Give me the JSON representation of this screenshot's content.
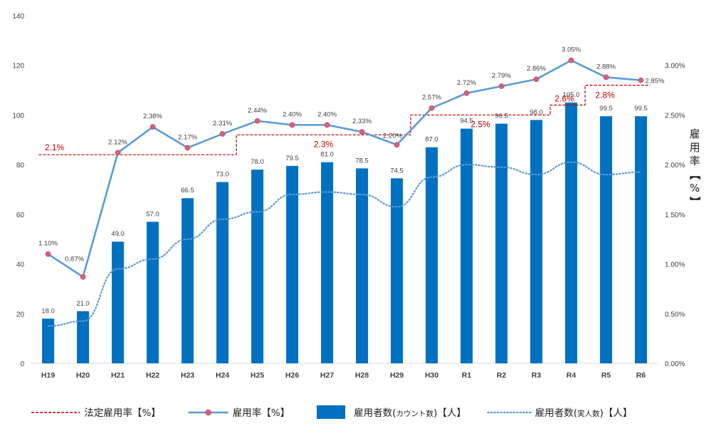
{
  "chart_data": {
    "type": "bar",
    "categories": [
      "H19",
      "H20",
      "H21",
      "H22",
      "H23",
      "H24",
      "H25",
      "H26",
      "H27",
      "H28",
      "H29",
      "H30",
      "R1",
      "R2",
      "R3",
      "R4",
      "R5",
      "R6"
    ],
    "left_axis": {
      "min": 0,
      "max": 140,
      "ticks": [
        "0",
        "20",
        "40",
        "60",
        "80",
        "100",
        "120",
        "140"
      ]
    },
    "right_axis": {
      "label": "雇用率【%】",
      "min": 0,
      "max": 3.5,
      "ticks": [
        "0.00%",
        "0.50%",
        "1.00%",
        "1.50%",
        "2.00%",
        "2.50%",
        "3.00%"
      ]
    },
    "series": [
      {
        "name": "雇用者数(カウント数)【人】",
        "axis": "left",
        "render": "bar",
        "color": "#0070c0",
        "values": [
          18.0,
          21.0,
          49.0,
          57.0,
          66.5,
          73.0,
          78.0,
          79.5,
          81.0,
          78.5,
          74.5,
          87.0,
          94.5,
          96.5,
          98.0,
          105.0,
          99.5,
          99.5
        ],
        "labels": [
          "18.0",
          "21.0",
          "49.0",
          "57.0",
          "66.5",
          "73.0",
          "78.0",
          "79.5",
          "81.0",
          "78.5",
          "74.5",
          "87.0",
          "94.5",
          "96.5",
          "98.0",
          "105.0",
          "99.5",
          "99.5"
        ]
      },
      {
        "name": "雇用率【%】",
        "axis": "right",
        "render": "line-markers",
        "color": "#5b9bd5",
        "marker_color": "#d9607a",
        "values": [
          1.1,
          0.87,
          2.12,
          2.38,
          2.17,
          2.31,
          2.44,
          2.4,
          2.4,
          2.33,
          2.2,
          2.57,
          2.72,
          2.79,
          2.86,
          3.05,
          2.88,
          2.85
        ],
        "labels": [
          "1.10%",
          "0.87%",
          "2.12%",
          "2.38%",
          "2.17%",
          "2.31%",
          "2.44%",
          "2.40%",
          "2.40%",
          "2.33%",
          "2.20%",
          "2.57%",
          "2.72%",
          "2.79%",
          "2.86%",
          "3.05%",
          "2.88%",
          "2.85%"
        ]
      },
      {
        "name": "雇用者数(実人数)【人】",
        "axis": "left",
        "render": "dotted-line",
        "color": "#5b9bd5",
        "values": [
          15,
          17,
          38,
          42,
          50,
          58,
          61,
          68,
          69,
          68,
          63,
          75,
          80,
          79,
          76,
          81,
          76,
          77
        ]
      },
      {
        "name": "法定雇用率【%】",
        "axis": "right",
        "render": "step-dashed",
        "color": "#c00000",
        "steps": [
          {
            "from": 0,
            "to": 5,
            "value": 2.1,
            "label": "2.1%"
          },
          {
            "from": 6,
            "to": 10,
            "value": 2.3,
            "label": "2.3%"
          },
          {
            "from": 11,
            "to": 14,
            "value": 2.5,
            "label": "2.5%"
          },
          {
            "from": 15,
            "to": 15,
            "value": 2.6,
            "label": "2.6%"
          },
          {
            "from": 16,
            "to": 17,
            "value": 2.8,
            "label": "2.8%"
          }
        ]
      }
    ],
    "legend": {
      "placement": "bottom",
      "items": [
        {
          "label": "法定雇用率【%】"
        },
        {
          "label": "雇用率【%】"
        },
        {
          "label_main": "雇用者数(",
          "label_small": "カウント数",
          "label_end": ")【人】"
        },
        {
          "label_main": "雇用者数(",
          "label_small": "実人数",
          "label_end": ")【人】"
        }
      ]
    }
  }
}
